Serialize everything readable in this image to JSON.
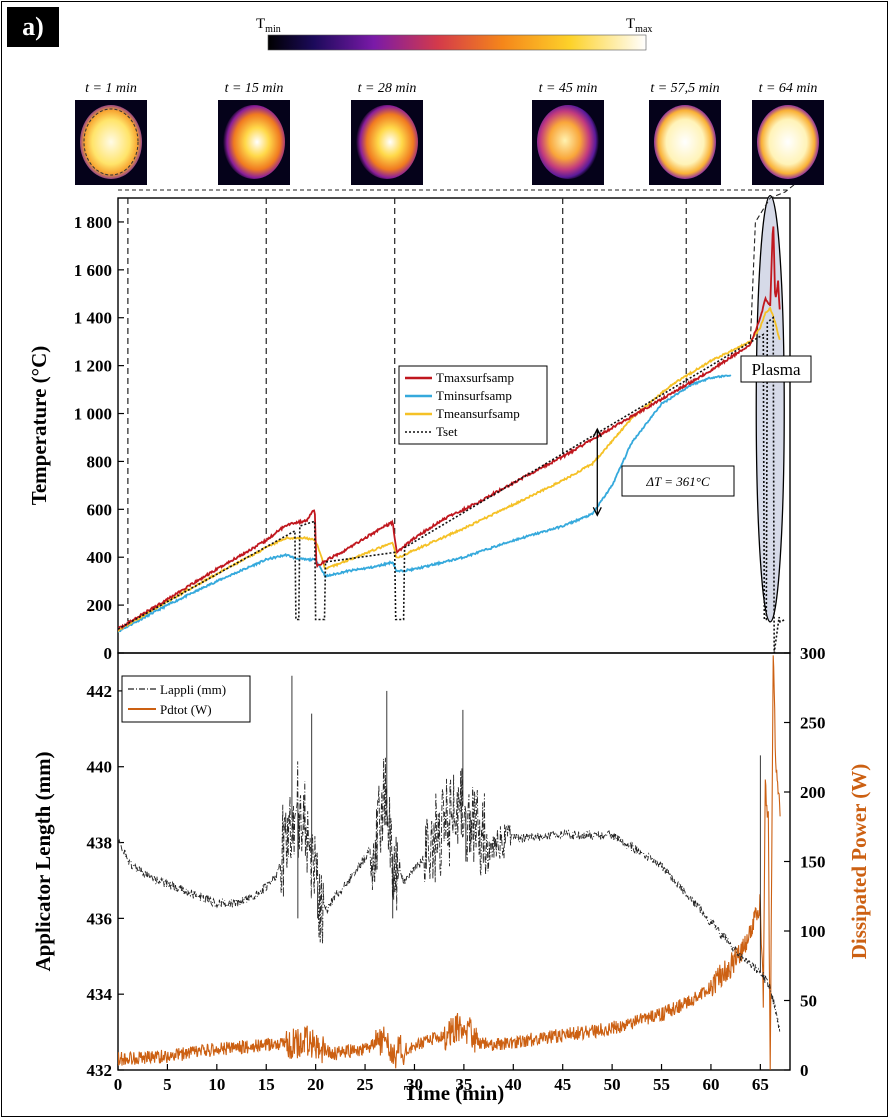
{
  "panel_label": "a)",
  "colorbar": {
    "min_label": "T",
    "min_sub": "min",
    "max_label": "T",
    "max_sub": "max"
  },
  "snapshots": [
    {
      "label": "t = 1 min",
      "time": 1,
      "style": "yellow"
    },
    {
      "label": "t = 15 min",
      "time": 15,
      "style": "warm"
    },
    {
      "label": "t = 28 min",
      "time": 28,
      "style": "warm"
    },
    {
      "label": "t = 45 min",
      "time": 45,
      "style": "cool"
    },
    {
      "label": "t = 57,5 min",
      "time": 57.5,
      "style": "hot"
    },
    {
      "label": "t = 64 min",
      "time": 64,
      "style": "hot"
    }
  ],
  "colors": {
    "tmax": "#c0171e",
    "tmin": "#35a9dc",
    "tmean": "#f5c126",
    "tset": "#111111",
    "lappli": "#222222",
    "pdtot": "#cc6012",
    "plasma_fill": "#d6dae8"
  },
  "chart_data": [
    {
      "type": "line",
      "xlabel": "",
      "ylabel": "Temperature (°C)",
      "xlim": [
        0,
        68
      ],
      "ylim": [
        0,
        1900
      ],
      "yticks": [
        0,
        200,
        400,
        600,
        800,
        1000,
        1200,
        1400,
        1600,
        1800
      ],
      "ytick_labels": [
        "0",
        "200",
        "400",
        "600",
        "800",
        "1 000",
        "1 200",
        "1 400",
        "1 600",
        "1 800"
      ],
      "legend_position": "center",
      "annotations": {
        "delta": "ΔT = 361°C",
        "plasma": "Plasma"
      },
      "series": [
        {
          "name": "Tmaxsurfsamp",
          "x": [
            0,
            5,
            10,
            15,
            17,
            18,
            19,
            19.9,
            20.1,
            21,
            23,
            25,
            27,
            27.8,
            28.2,
            30,
            33,
            36,
            40,
            45,
            50,
            55,
            60,
            64,
            65,
            65.5,
            66,
            66.3,
            66.5,
            66.8,
            67
          ],
          "y": [
            100,
            225,
            350,
            470,
            535,
            545,
            550,
            600,
            360,
            385,
            430,
            480,
            530,
            545,
            420,
            480,
            560,
            620,
            710,
            820,
            940,
            1060,
            1180,
            1290,
            1400,
            1480,
            1450,
            1820,
            1470,
            1550,
            1400
          ]
        },
        {
          "name": "Tminsurfsamp",
          "x": [
            0,
            5,
            10,
            15,
            17,
            18,
            19,
            20,
            21,
            23,
            26,
            27.8,
            28.2,
            30,
            35,
            40,
            45,
            48,
            50,
            52,
            55,
            58,
            60,
            62
          ],
          "y": [
            90,
            200,
            300,
            390,
            410,
            395,
            390,
            390,
            320,
            340,
            360,
            380,
            340,
            350,
            400,
            470,
            530,
            580,
            700,
            880,
            1040,
            1120,
            1150,
            1160
          ]
        },
        {
          "name": "Tmeansurfsamp",
          "x": [
            0,
            5,
            10,
            15,
            17,
            19,
            20,
            21,
            24,
            27.8,
            28.2,
            30,
            35,
            40,
            45,
            48,
            52,
            56,
            60,
            64,
            65,
            65.5,
            66,
            66.5,
            67
          ],
          "y": [
            95,
            215,
            330,
            440,
            480,
            480,
            470,
            350,
            400,
            460,
            395,
            430,
            520,
            620,
            720,
            790,
            980,
            1120,
            1220,
            1300,
            1360,
            1420,
            1440,
            1380,
            1300
          ]
        },
        {
          "name": "Tset",
          "x": [
            0,
            17.9,
            18,
            18.3,
            18.4,
            19.9,
            20,
            20.9,
            21,
            28,
            28.1,
            28.9,
            29,
            65.3,
            65.4,
            65.6,
            65.7,
            66.3,
            66.4,
            66.9,
            67,
            67.5
          ],
          "y": [
            100,
            510,
            140,
            140,
            530,
            550,
            140,
            140,
            380,
            420,
            140,
            140,
            440,
            1330,
            140,
            140,
            1380,
            1400,
            0,
            150,
            130,
            140
          ]
        }
      ],
      "vertical_guides": [
        1,
        15,
        28,
        45,
        57.5,
        64
      ]
    },
    {
      "type": "line",
      "xlabel": "Time (min)",
      "ylabel": "Applicator Length (mm)",
      "y2label": "Dissipated Power (W)",
      "xlim": [
        0,
        68
      ],
      "xticks": [
        0,
        5,
        10,
        15,
        20,
        25,
        30,
        35,
        40,
        45,
        50,
        55,
        60,
        65
      ],
      "ylim": [
        432,
        443
      ],
      "yticks": [
        432,
        434,
        436,
        438,
        440,
        442
      ],
      "y2lim": [
        0,
        300
      ],
      "y2ticks": [
        0,
        50,
        100,
        150,
        200,
        250,
        300
      ],
      "legend_position": "top-left",
      "series": [
        {
          "name": "Lappli (mm)",
          "axis": "left",
          "x": [
            0,
            1,
            3,
            5,
            8,
            10,
            12,
            14,
            16,
            17,
            18,
            19,
            20,
            21,
            22,
            24,
            26,
            27,
            28,
            29,
            31,
            33,
            35,
            36,
            38,
            40,
            45,
            50,
            55,
            60,
            63,
            64,
            65,
            66,
            67
          ],
          "y": [
            438.1,
            437.5,
            437.1,
            436.9,
            436.6,
            436.4,
            436.4,
            436.6,
            437.1,
            438.0,
            439.0,
            438.5,
            437.0,
            436.2,
            436.6,
            437.2,
            438.0,
            439.3,
            437.3,
            437.0,
            437.6,
            438.3,
            439.0,
            438.2,
            438.0,
            438.1,
            438.2,
            438.2,
            437.4,
            435.9,
            435.0,
            434.8,
            434.6,
            434.2,
            433.0
          ],
          "spikes": [
            [
              17.6,
              442.4
            ],
            [
              18.2,
              436.0
            ],
            [
              19.6,
              441.4
            ],
            [
              20.2,
              436.0
            ],
            [
              27.2,
              442.0
            ],
            [
              27.8,
              436.0
            ],
            [
              34.9,
              441.5
            ],
            [
              35.2,
              437.5
            ],
            [
              65.0,
              440.3
            ]
          ]
        },
        {
          "name": "Pdtot (W)",
          "axis": "right",
          "x": [
            0,
            5,
            10,
            15,
            17,
            18,
            19,
            20,
            22,
            25,
            27,
            28,
            30,
            33,
            35,
            36,
            38,
            40,
            45,
            50,
            55,
            58,
            60,
            62,
            63,
            64,
            64.5,
            65,
            65.3,
            65.5,
            65.8,
            66,
            66.3,
            66.6,
            67
          ],
          "y": [
            8,
            10,
            15,
            18,
            20,
            18,
            22,
            15,
            12,
            15,
            22,
            12,
            18,
            25,
            35,
            20,
            18,
            20,
            25,
            30,
            40,
            50,
            60,
            75,
            85,
            100,
            115,
            120,
            50,
            200,
            180,
            0,
            300,
            210,
            190
          ]
        }
      ]
    }
  ]
}
